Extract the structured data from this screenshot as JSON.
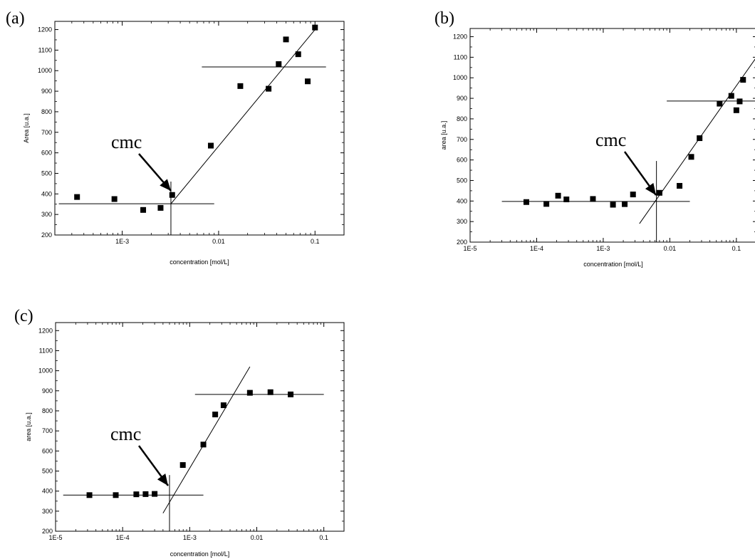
{
  "chart_data": [
    {
      "type": "scatter",
      "panel_label": "(a)",
      "xlabel": "concentration [mol/L]",
      "ylabel": "Area [u.a.]",
      "x_scale": "log",
      "xlim": [
        0.0002,
        0.2
      ],
      "ylim": [
        200,
        1240
      ],
      "x_ticks": [
        0.001,
        0.01,
        0.1
      ],
      "x_tick_labels": [
        "1E-3",
        "0.01",
        "0.1"
      ],
      "y_ticks": [
        200,
        300,
        400,
        500,
        600,
        700,
        800,
        900,
        1000,
        1100,
        1200
      ],
      "y_tick_labels": [
        "200",
        "300",
        "400",
        "500",
        "600",
        "700",
        "800",
        "900",
        "1000",
        "1100",
        "1200"
      ],
      "points": [
        {
          "x": 0.00034,
          "y": 385
        },
        {
          "x": 0.00083,
          "y": 375
        },
        {
          "x": 0.00165,
          "y": 322
        },
        {
          "x": 0.0025,
          "y": 332
        },
        {
          "x": 0.0033,
          "y": 395
        },
        {
          "x": 0.0083,
          "y": 635
        },
        {
          "x": 0.0168,
          "y": 925
        },
        {
          "x": 0.033,
          "y": 912
        },
        {
          "x": 0.042,
          "y": 1032
        },
        {
          "x": 0.05,
          "y": 1152
        },
        {
          "x": 0.067,
          "y": 1080
        },
        {
          "x": 0.084,
          "y": 948
        },
        {
          "x": 0.1,
          "y": 1210
        }
      ],
      "fit_lines": [
        {
          "x": [
            0.00022,
            0.009
          ],
          "y": [
            352,
            352
          ]
        },
        {
          "x": [
            0.0032,
            0.1
          ],
          "y": [
            352,
            1200
          ]
        },
        {
          "x": [
            0.0067,
            0.13
          ],
          "y": [
            1018,
            1018
          ]
        },
        {
          "x": [
            0.0032,
            0.0032
          ],
          "y": [
            200,
            460
          ]
        }
      ],
      "annotation": {
        "text": "cmc",
        "x": 0.0032,
        "y": 352
      }
    },
    {
      "type": "scatter",
      "panel_label": "(b)",
      "xlabel": "concentration [mol/L]",
      "ylabel": "area [u.a.]",
      "x_scale": "log",
      "xlim": [
        1e-05,
        0.2
      ],
      "ylim": [
        200,
        1240
      ],
      "x_ticks": [
        1e-05,
        0.0001,
        0.001,
        0.01,
        0.1
      ],
      "x_tick_labels": [
        "1E-5",
        "1E-4",
        "1E-3",
        "0.01",
        "0.1"
      ],
      "y_ticks": [
        200,
        300,
        400,
        500,
        600,
        700,
        800,
        900,
        1000,
        1100,
        1200
      ],
      "y_tick_labels": [
        "200",
        "300",
        "400",
        "500",
        "600",
        "700",
        "800",
        "900",
        "1000",
        "1100",
        "1200"
      ],
      "points": [
        {
          "x": 7e-05,
          "y": 395
        },
        {
          "x": 0.00014,
          "y": 386
        },
        {
          "x": 0.00021,
          "y": 426
        },
        {
          "x": 0.00028,
          "y": 408
        },
        {
          "x": 0.0007,
          "y": 410
        },
        {
          "x": 0.0014,
          "y": 382
        },
        {
          "x": 0.0021,
          "y": 385
        },
        {
          "x": 0.0028,
          "y": 432
        },
        {
          "x": 0.007,
          "y": 440
        },
        {
          "x": 0.014,
          "y": 474
        },
        {
          "x": 0.021,
          "y": 615
        },
        {
          "x": 0.028,
          "y": 706
        },
        {
          "x": 0.056,
          "y": 874
        },
        {
          "x": 0.084,
          "y": 912
        },
        {
          "x": 0.1,
          "y": 842
        },
        {
          "x": 0.112,
          "y": 885
        },
        {
          "x": 0.126,
          "y": 990
        }
      ],
      "fit_lines": [
        {
          "x": [
            3e-05,
            0.02
          ],
          "y": [
            398,
            398
          ]
        },
        {
          "x": [
            0.0035,
            0.2
          ],
          "y": [
            290,
            1100
          ]
        },
        {
          "x": [
            0.009,
            0.2
          ],
          "y": [
            887,
            887
          ]
        },
        {
          "x": [
            0.0063,
            0.0063
          ],
          "y": [
            200,
            595
          ]
        }
      ],
      "annotation": {
        "text": "cmc",
        "x": 0.0063,
        "y": 398
      }
    },
    {
      "type": "scatter",
      "panel_label": "(c)",
      "xlabel": "concentration [mol/L]",
      "ylabel": "area [u.a.]",
      "x_scale": "log",
      "xlim": [
        1e-05,
        0.2
      ],
      "ylim": [
        200,
        1240
      ],
      "x_ticks": [
        1e-05,
        0.0001,
        0.001,
        0.01,
        0.1
      ],
      "x_tick_labels": [
        "1E-5",
        "1E-4",
        "1E-3",
        "0.01",
        "0.1"
      ],
      "y_ticks": [
        200,
        300,
        400,
        500,
        600,
        700,
        800,
        900,
        1000,
        1100,
        1200
      ],
      "y_tick_labels": [
        "200",
        "300",
        "400",
        "500",
        "600",
        "700",
        "800",
        "900",
        "1000",
        "1100",
        "1200"
      ],
      "points": [
        {
          "x": 3.2e-05,
          "y": 380
        },
        {
          "x": 7.9e-05,
          "y": 380
        },
        {
          "x": 0.00016,
          "y": 384
        },
        {
          "x": 0.00022,
          "y": 385
        },
        {
          "x": 0.0003,
          "y": 386
        },
        {
          "x": 0.00079,
          "y": 530
        },
        {
          "x": 0.0016,
          "y": 632
        },
        {
          "x": 0.0024,
          "y": 782
        },
        {
          "x": 0.0032,
          "y": 828
        },
        {
          "x": 0.0079,
          "y": 890
        },
        {
          "x": 0.016,
          "y": 893
        },
        {
          "x": 0.032,
          "y": 882
        }
      ],
      "fit_lines": [
        {
          "x": [
            1.3e-05,
            0.0016
          ],
          "y": [
            380,
            380
          ]
        },
        {
          "x": [
            0.0004,
            0.0079
          ],
          "y": [
            290,
            1020
          ]
        },
        {
          "x": [
            0.0012,
            0.1
          ],
          "y": [
            882,
            882
          ]
        },
        {
          "x": [
            0.0005,
            0.0005
          ],
          "y": [
            200,
            480
          ]
        }
      ],
      "annotation": {
        "text": "cmc",
        "x": 0.0005,
        "y": 380
      }
    }
  ]
}
